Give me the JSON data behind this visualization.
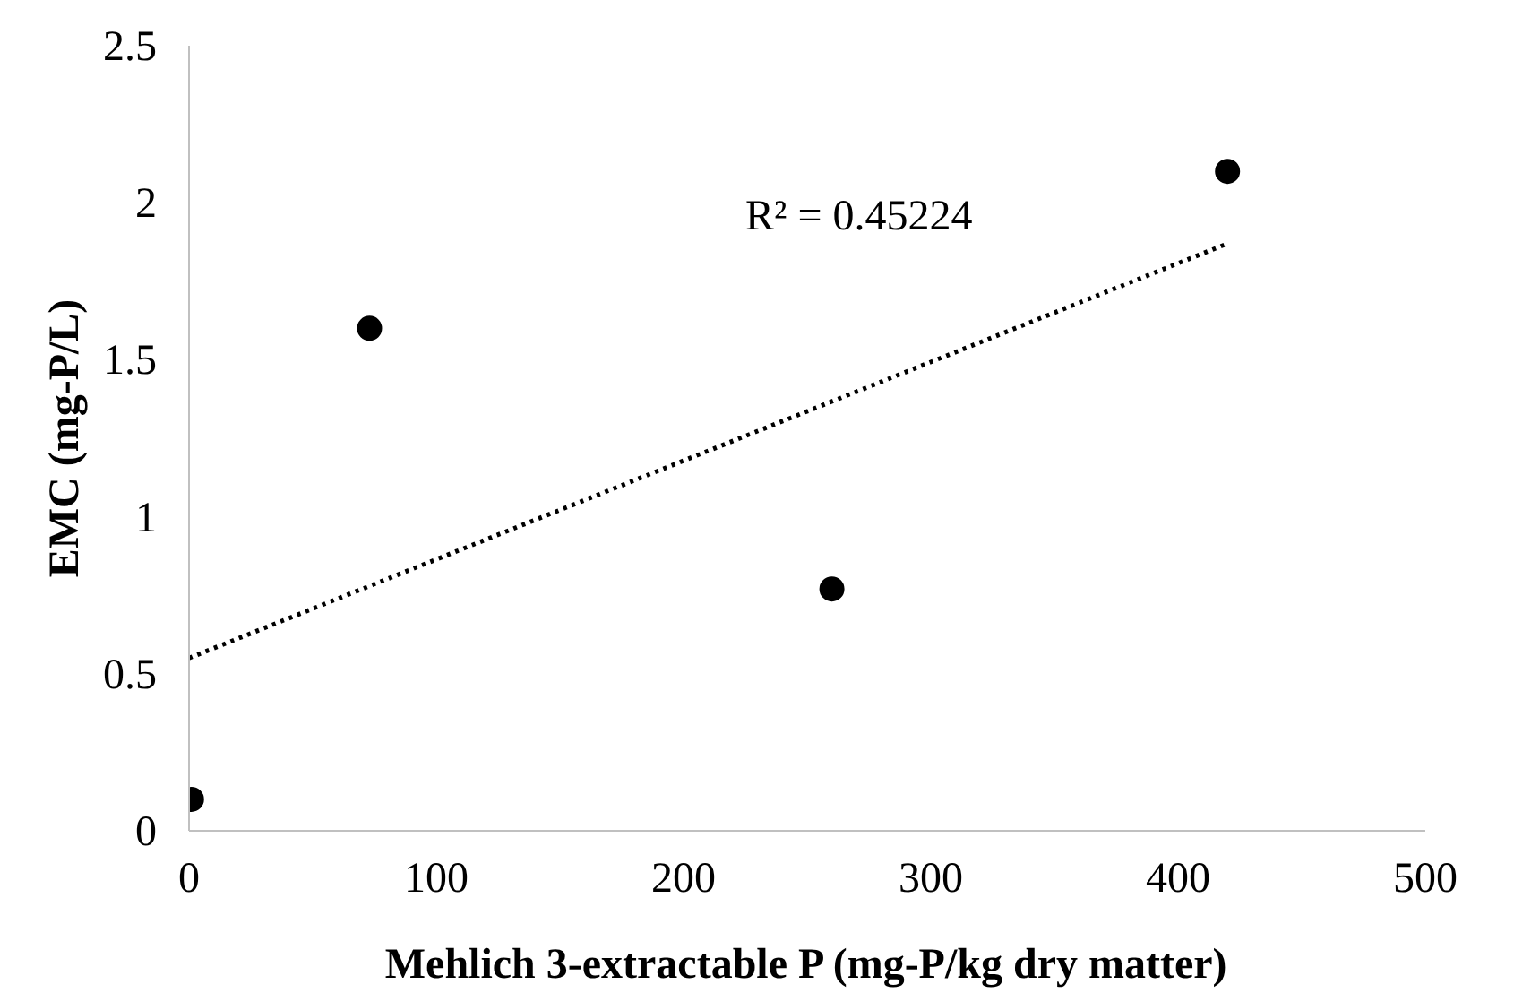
{
  "chart_data": {
    "type": "scatter",
    "xlabel": "Mehlich 3-extractable P (mg-P/kg dry matter)",
    "ylabel": "EMC (mg-P/L)",
    "xlim": [
      0,
      500
    ],
    "xticks": [
      0,
      100,
      200,
      300,
      400,
      500
    ],
    "ylim": [
      0,
      2.5
    ],
    "yticks": [
      0,
      0.5,
      1,
      1.5,
      2,
      2.5
    ],
    "grid": false,
    "marker": "circle",
    "annotations": [
      "R² = 0.45224"
    ],
    "series": [
      {
        "color": "#000000",
        "x": [
          1,
          73,
          260,
          420
        ],
        "values": [
          0.1,
          1.6,
          0.77,
          2.1
        ]
      },
      {
        "type": "line",
        "color": "#000000",
        "line_style": "dotted",
        "marker": "none",
        "x": [
          0,
          420
        ],
        "values": [
          0.55,
          1.87
        ]
      }
    ]
  }
}
